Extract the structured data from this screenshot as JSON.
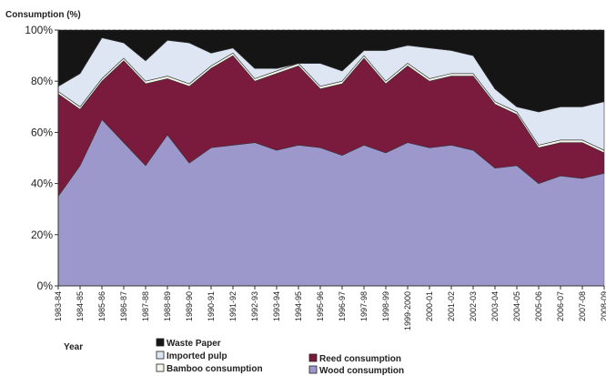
{
  "chart_data": {
    "type": "area",
    "stacked": true,
    "ylabel": "Consumption (%)",
    "xlabel": "Year",
    "ylim": [
      0,
      100
    ],
    "yticks": [
      0,
      20,
      40,
      60,
      80,
      100
    ],
    "ytick_labels": [
      "0%",
      "20%",
      "40%",
      "60%",
      "80%",
      "100%"
    ],
    "categories": [
      "1983-84",
      "1984-85",
      "1985-86",
      "1986-87",
      "1987-88",
      "1988-89",
      "1989-90",
      "1990-91",
      "1991-92",
      "1992-93",
      "1993-94",
      "1994-95",
      "1995-96",
      "1996-97",
      "1997-98",
      "1998-99",
      "1999-2000",
      "2000-01",
      "2001-02",
      "2002-03",
      "2003-04",
      "2004-05",
      "2005-06",
      "2006-07",
      "2007-08",
      "2008-09"
    ],
    "series": [
      {
        "name": "Wood consumption",
        "color": "#9d98cc",
        "values": [
          35,
          47,
          65,
          56,
          47,
          59,
          48,
          54,
          55,
          56,
          53,
          55,
          54,
          51,
          55,
          52,
          56,
          54,
          55,
          53,
          46,
          47,
          40,
          43,
          42,
          44
        ]
      },
      {
        "name": "Reed consumption",
        "color": "#7a1a3c",
        "values": [
          40,
          22,
          15,
          32,
          32,
          22,
          30,
          31,
          35,
          24,
          30,
          31,
          23,
          28,
          34,
          27,
          30,
          26,
          27,
          29,
          25,
          20,
          14,
          13,
          14,
          8
        ]
      },
      {
        "name": "Bamboo consumption",
        "color": "#f5f5ec",
        "values": [
          1,
          1,
          1,
          1,
          1,
          1,
          1,
          1,
          1,
          1,
          1,
          1,
          1,
          1,
          1,
          1,
          1,
          1,
          1,
          1,
          1,
          1,
          1,
          1,
          1,
          1
        ]
      },
      {
        "name": "Imported pulp",
        "color": "#dde6f2",
        "values": [
          2,
          13,
          16,
          6,
          8,
          14,
          16,
          5,
          2,
          4,
          1,
          0,
          9,
          4,
          2,
          12,
          7,
          12,
          9,
          7,
          5,
          2,
          13,
          13,
          13,
          19
        ]
      },
      {
        "name": "Waste Paper",
        "color": "#151515",
        "values": [
          22,
          17,
          3,
          5,
          12,
          4,
          5,
          9,
          7,
          15,
          15,
          13,
          13,
          16,
          8,
          8,
          6,
          7,
          8,
          10,
          23,
          30,
          32,
          30,
          30,
          28
        ]
      }
    ],
    "legend": {
      "placement": "bottom",
      "entries": [
        {
          "label": "Waste Paper",
          "series": 4
        },
        {
          "label": "Imported pulp",
          "series": 3
        },
        {
          "label": "Bamboo consumption",
          "series": 2
        },
        {
          "label": "Reed consumption",
          "series": 1
        },
        {
          "label": "Wood consumption",
          "series": 0
        }
      ]
    }
  }
}
